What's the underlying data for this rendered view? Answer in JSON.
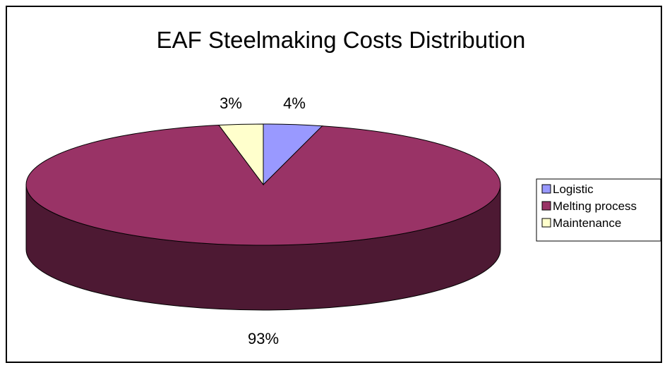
{
  "chart_data": {
    "type": "pie",
    "style": "3d",
    "title": "EAF Steelmaking Costs Distribution",
    "categories": [
      "Logistic",
      "Melting process",
      "Maintenance"
    ],
    "values": [
      4,
      93,
      3
    ],
    "value_labels": [
      "4%",
      "93%",
      "3%"
    ],
    "unit": "%",
    "colors": [
      "#9999FF",
      "#993366",
      "#FFFFCC"
    ],
    "side_colors": [
      "#5C5C99",
      "#4D1933",
      "#99997A"
    ],
    "legend": {
      "position": "right",
      "entries": [
        "Logistic",
        "Melting process",
        "Maintenance"
      ]
    }
  }
}
